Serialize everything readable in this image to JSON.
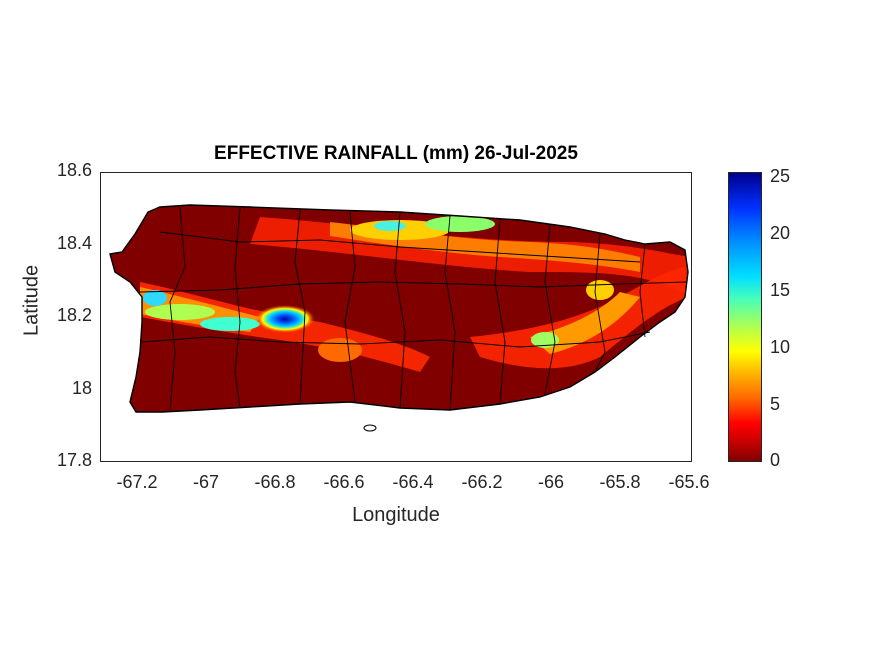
{
  "map": {
    "title": "EFFECTIVE RAINFALL (mm) 26-Jul-2025",
    "xlabel": "Longitude",
    "ylabel": "Latitude",
    "xlim": [
      -67.3,
      -65.58
    ],
    "ylim": [
      17.8,
      18.6
    ],
    "xticks": [
      "-67.2",
      "-67",
      "-66.8",
      "-66.6",
      "-66.4",
      "-66.2",
      "-66",
      "-65.8",
      "-65.6"
    ],
    "yticks": [
      "18.6",
      "18.4",
      "18.2",
      "18",
      "17.8"
    ],
    "colorbar": {
      "ticks": [
        "25",
        "20",
        "15",
        "10",
        "5",
        "0"
      ],
      "range": [
        0,
        25.5
      ],
      "colormap": "jet-reversed"
    },
    "colors": {
      "dry": "#800000",
      "boundary": "#000000"
    }
  }
}
